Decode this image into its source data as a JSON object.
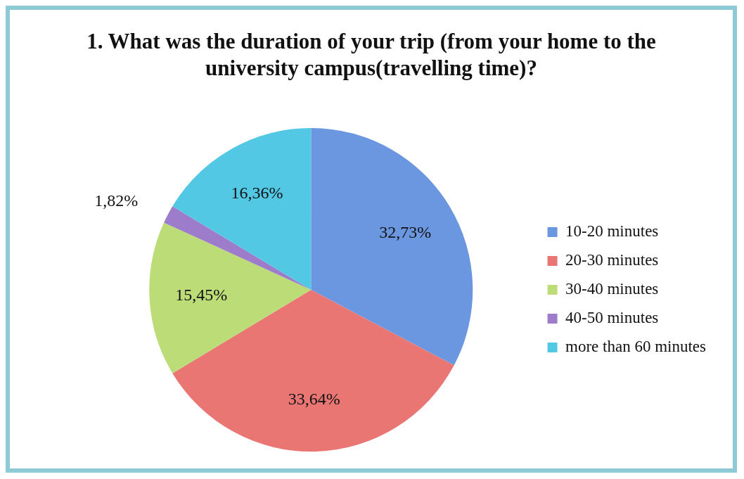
{
  "chart_data": {
    "type": "pie",
    "title": "1. What was the duration of your trip (from your home to the university campus(travelling time)?",
    "categories": [
      "10-20 minutes",
      "20-30 minutes",
      "30-40 minutes",
      "40-50 minutes",
      "more than 60 minutes"
    ],
    "values": [
      32.73,
      33.64,
      15.45,
      1.82,
      16.36
    ],
    "colors": [
      "#6a97e0",
      "#ea7674",
      "#bcdc78",
      "#9c7ccb",
      "#52c8e4"
    ],
    "value_labels": [
      "32,73%",
      "33,64%",
      "15,45%",
      "1,82%",
      "16,36%"
    ],
    "legend": "right"
  }
}
